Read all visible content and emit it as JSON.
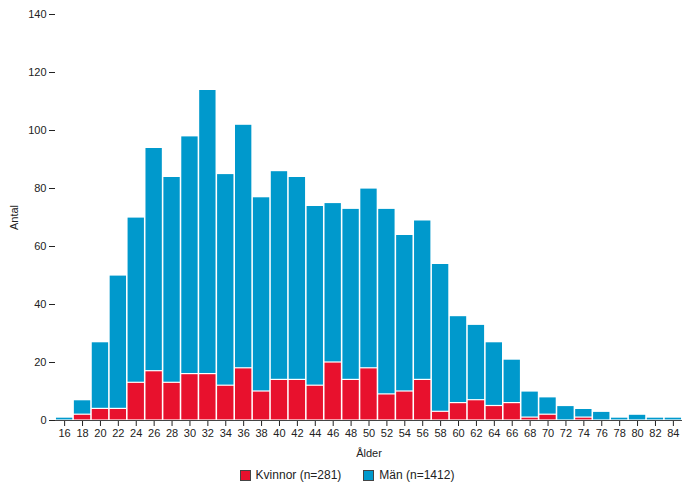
{
  "chart_data": {
    "type": "bar",
    "stacked": true,
    "legend": "bottom",
    "grid": false,
    "x_label": "Ålder",
    "y_label": "Antal",
    "categories": [
      "16",
      "18",
      "20",
      "22",
      "24",
      "26",
      "28",
      "30",
      "32",
      "34",
      "36",
      "38",
      "40",
      "42",
      "44",
      "46",
      "48",
      "50",
      "52",
      "54",
      "56",
      "58",
      "60",
      "62",
      "64",
      "66",
      "68",
      "70",
      "72",
      "74",
      "76",
      "78",
      "80",
      "82",
      "84"
    ],
    "series": [
      {
        "name": "Kvinnor (n=281)",
        "color": "#e8112d",
        "values": [
          0,
          2,
          4,
          4,
          13,
          17,
          13,
          16,
          16,
          12,
          18,
          10,
          14,
          14,
          12,
          20,
          14,
          18,
          9,
          10,
          14,
          3,
          6,
          7,
          5,
          6,
          1,
          2,
          0,
          1,
          0,
          0,
          0,
          0,
          0
        ]
      },
      {
        "name": "Män (n=1412)",
        "color": "#0099cc",
        "values": [
          1,
          5,
          23,
          46,
          57,
          77,
          71,
          82,
          98,
          73,
          84,
          67,
          72,
          70,
          62,
          55,
          59,
          62,
          64,
          54,
          55,
          51,
          30,
          26,
          22,
          15,
          9,
          6,
          5,
          3,
          3,
          1,
          2,
          1,
          1
        ]
      }
    ],
    "ylim": [
      0,
      140
    ],
    "yticks": [
      0,
      20,
      40,
      60,
      80,
      100,
      120,
      140
    ]
  }
}
